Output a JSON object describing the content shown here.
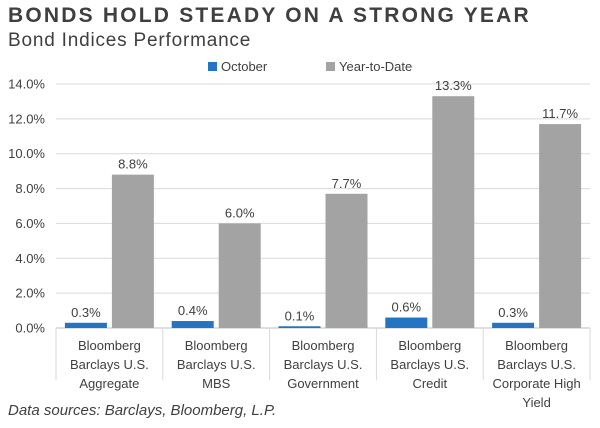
{
  "header": {
    "title": "BONDS HOLD STEADY ON A STRONG YEAR",
    "subtitle": "Bond Indices Performance"
  },
  "footer": {
    "source": "Data sources: Barclays, Bloomberg, L.P."
  },
  "colors": {
    "october": "#2474c2",
    "ytd": "#a3a3a3",
    "gridline": "#d9d9d9",
    "axis": "#bfbfbf"
  },
  "chart_data": {
    "type": "bar",
    "title": "Bond Indices Performance",
    "categories": [
      [
        "Bloomberg",
        "Barclays U.S.",
        "Aggregate"
      ],
      [
        "Bloomberg",
        "Barclays U.S.",
        "MBS"
      ],
      [
        "Bloomberg",
        "Barclays U.S.",
        "Government"
      ],
      [
        "Bloomberg",
        "Barclays U.S.",
        "Credit"
      ],
      [
        "Bloomberg",
        "Barclays U.S.",
        "Corporate High",
        "Yield"
      ]
    ],
    "series": [
      {
        "name": "October",
        "values": [
          0.3,
          0.4,
          0.1,
          0.6,
          0.3
        ],
        "labels": [
          "0.3%",
          "0.4%",
          "0.1%",
          "0.6%",
          "0.3%"
        ]
      },
      {
        "name": "Year-to-Date",
        "values": [
          8.8,
          6.0,
          7.7,
          13.3,
          11.7
        ],
        "labels": [
          "8.8%",
          "6.0%",
          "7.7%",
          "13.3%",
          "11.7%"
        ]
      }
    ],
    "ylim": [
      0,
      14
    ],
    "yticks": [
      "0.0%",
      "2.0%",
      "4.0%",
      "6.0%",
      "8.0%",
      "10.0%",
      "12.0%",
      "14.0%"
    ],
    "grid": true,
    "legend": "top-center"
  }
}
